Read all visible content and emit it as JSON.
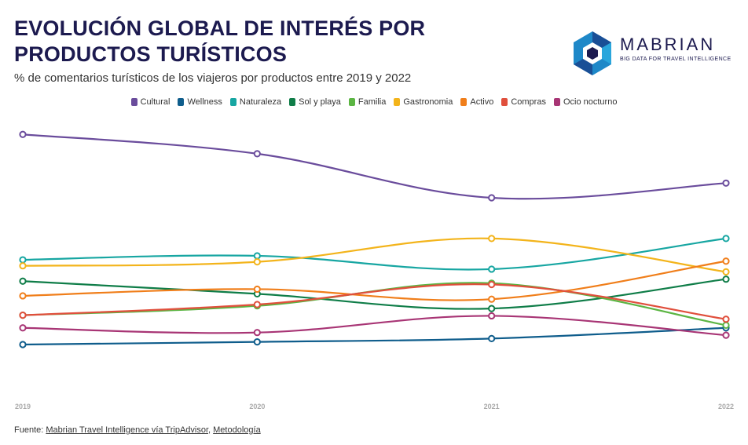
{
  "header": {
    "title": "EVOLUCIÓN GLOBAL DE INTERÉS POR PRODUCTOS TURÍSTICOS",
    "subtitle": "% de comentarios turísticos de los viajeros por productos entre 2019 y 2022"
  },
  "logo": {
    "word": "MABRIAN",
    "tagline": "BIG DATA FOR TRAVEL INTELLIGENCE"
  },
  "footer": {
    "prefix": "Fuente: ",
    "link1": "Mabrian Travel Intelligence vía TripAdvisor",
    "separator": ", ",
    "link2": "Metodología"
  },
  "chart_data": {
    "type": "line",
    "x": [
      "2019",
      "2020",
      "2021",
      "2022"
    ],
    "legend_position": "top-center",
    "grid": false,
    "ylim": [
      0,
      40
    ],
    "series": [
      {
        "name": "Cultural",
        "color": "#6a4c9c",
        "values": [
          37.5,
          34.6,
          28.0,
          30.2
        ]
      },
      {
        "name": "Wellness",
        "color": "#0f5d8c",
        "values": [
          6.0,
          6.4,
          6.9,
          8.5
        ]
      },
      {
        "name": "Naturaleza",
        "color": "#17a6a2",
        "values": [
          18.7,
          19.3,
          17.3,
          21.9
        ]
      },
      {
        "name": "Sol y playa",
        "color": "#0f7d48",
        "values": [
          15.5,
          13.6,
          11.4,
          15.8
        ]
      },
      {
        "name": "Familia",
        "color": "#5bb543",
        "values": [
          10.4,
          11.8,
          15.2,
          8.9
        ]
      },
      {
        "name": "Gastronomia",
        "color": "#f3b41b",
        "values": [
          17.8,
          18.4,
          21.9,
          16.9
        ]
      },
      {
        "name": "Activo",
        "color": "#f07e1a",
        "values": [
          13.3,
          14.3,
          12.8,
          18.5
        ]
      },
      {
        "name": "Compras",
        "color": "#e04f3c",
        "values": [
          10.4,
          12.0,
          15.0,
          9.8
        ]
      },
      {
        "name": "Ocio nocturno",
        "color": "#a83575",
        "values": [
          8.5,
          7.8,
          10.3,
          7.4
        ]
      }
    ]
  }
}
